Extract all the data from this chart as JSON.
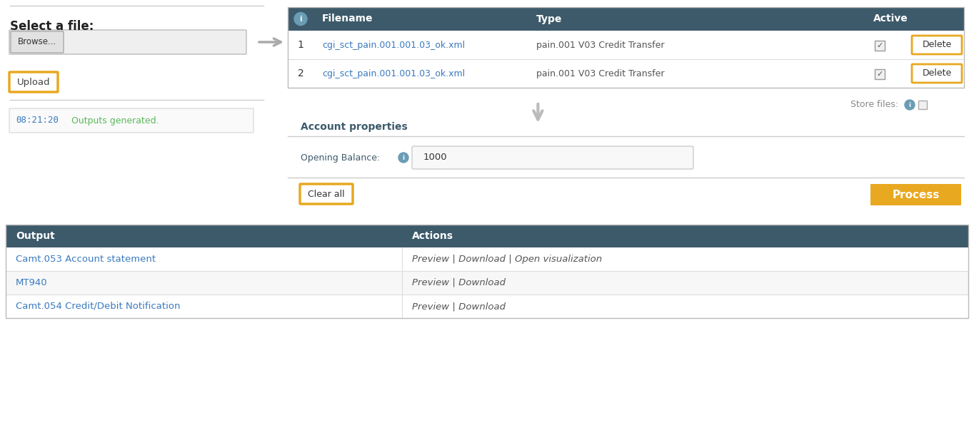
{
  "bg_color": "#ffffff",
  "select_file_label": "Select a file:",
  "browse_text": "Browse...",
  "upload_text": "Upload",
  "log_time": "08:21:20",
  "log_msg": "  Outputs generated.",
  "table_header_bg": "#3d5a6b",
  "table_header_color": "#ffffff",
  "header_cols": [
    "Filename",
    "Type",
    "Active"
  ],
  "rows": [
    [
      "1",
      "cgi_sct_pain.001.001.03_ok.xml",
      "pain.001 V03 Credit Transfer",
      "Delete"
    ],
    [
      "2",
      "cgi_sct_pain.001.001.03_ok.xml",
      "pain.001 V03 Credit Transfer",
      "Delete"
    ]
  ],
  "store_files_text": "Store files:",
  "account_properties_text": "Account properties",
  "opening_balance_text": "Opening Balance:",
  "opening_balance_value": "1000",
  "clear_all_text": "Clear all",
  "process_text": "Process",
  "output_header_bg": "#3d5a6b",
  "output_col1": "Output",
  "output_col2": "Actions",
  "output_rows": [
    [
      "Camt.053 Account statement",
      "Preview | Download | Open visualization"
    ],
    [
      "MT940",
      "Preview | Download"
    ],
    [
      "Camt.054 Credit/Debit Notification",
      "Preview | Download"
    ]
  ],
  "link_color": "#3a7abf",
  "orange_color": "#e8a820",
  "dark_header_color": "#3d5a6b",
  "green_color": "#5cb85c",
  "time_color": "#3a7abf",
  "gray_arrow": "#aaaaaa",
  "border_color": "#cccccc"
}
